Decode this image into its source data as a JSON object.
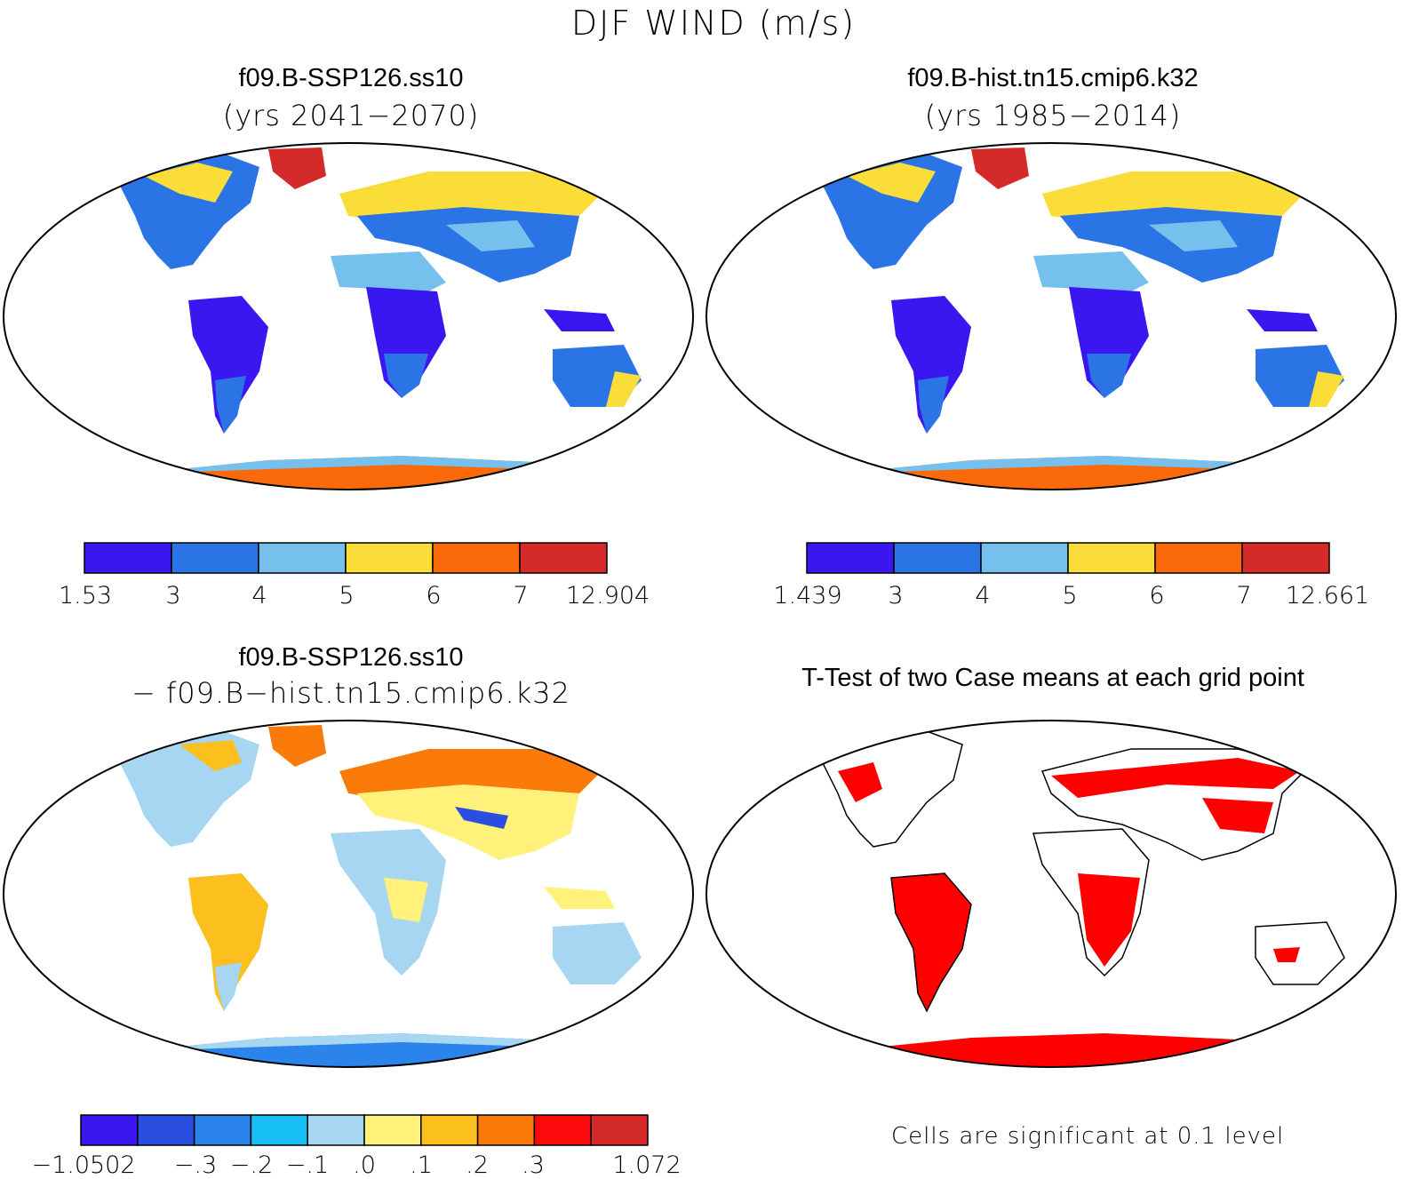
{
  "figure": {
    "title": "DJF WIND (m/s)"
  },
  "panels": [
    {
      "id": "future",
      "title": "f09.B-SSP126.ss10",
      "subtitle": "(yrs 2041−2070)",
      "colorbar": {
        "colors": [
          "#3a17f0",
          "#2b74e6",
          "#76c0ee",
          "#fbdd3a",
          "#fa6a0a",
          "#d42a2a"
        ],
        "tick_labels": [
          "1.53",
          "3",
          "4",
          "5",
          "6",
          "7",
          "12.904"
        ]
      }
    },
    {
      "id": "historical",
      "title": "f09.B-hist.tn15.cmip6.k32",
      "subtitle": "(yrs 1985−2014)",
      "colorbar": {
        "colors": [
          "#3a17f0",
          "#2b74e6",
          "#76c0ee",
          "#fbdd3a",
          "#fa6a0a",
          "#d42a2a"
        ],
        "tick_labels": [
          "1.439",
          "3",
          "4",
          "5",
          "6",
          "7",
          "12.661"
        ]
      }
    },
    {
      "id": "difference",
      "title": "f09.B-SSP126.ss10",
      "subtitle": "− f09.B−hist.tn15.cmip6.k32",
      "colorbar": {
        "colors": [
          "#3a17f0",
          "#2b4ee0",
          "#2b84ec",
          "#18bff5",
          "#a6d6f2",
          "#fff17a",
          "#fbbf1e",
          "#fa7a0a",
          "#fa0a0a",
          "#d42a2a"
        ],
        "tick_labels": [
          "−1.0502",
          "−.3",
          "−.2",
          "−.1",
          ".0",
          ".1",
          ".2",
          ".3",
          "1.072"
        ]
      }
    },
    {
      "id": "ttest",
      "title": "T-Test of two Case means at each grid point",
      "footnote": "Cells are significant at 0.1 level",
      "significant_color": "#ff0000"
    }
  ]
}
